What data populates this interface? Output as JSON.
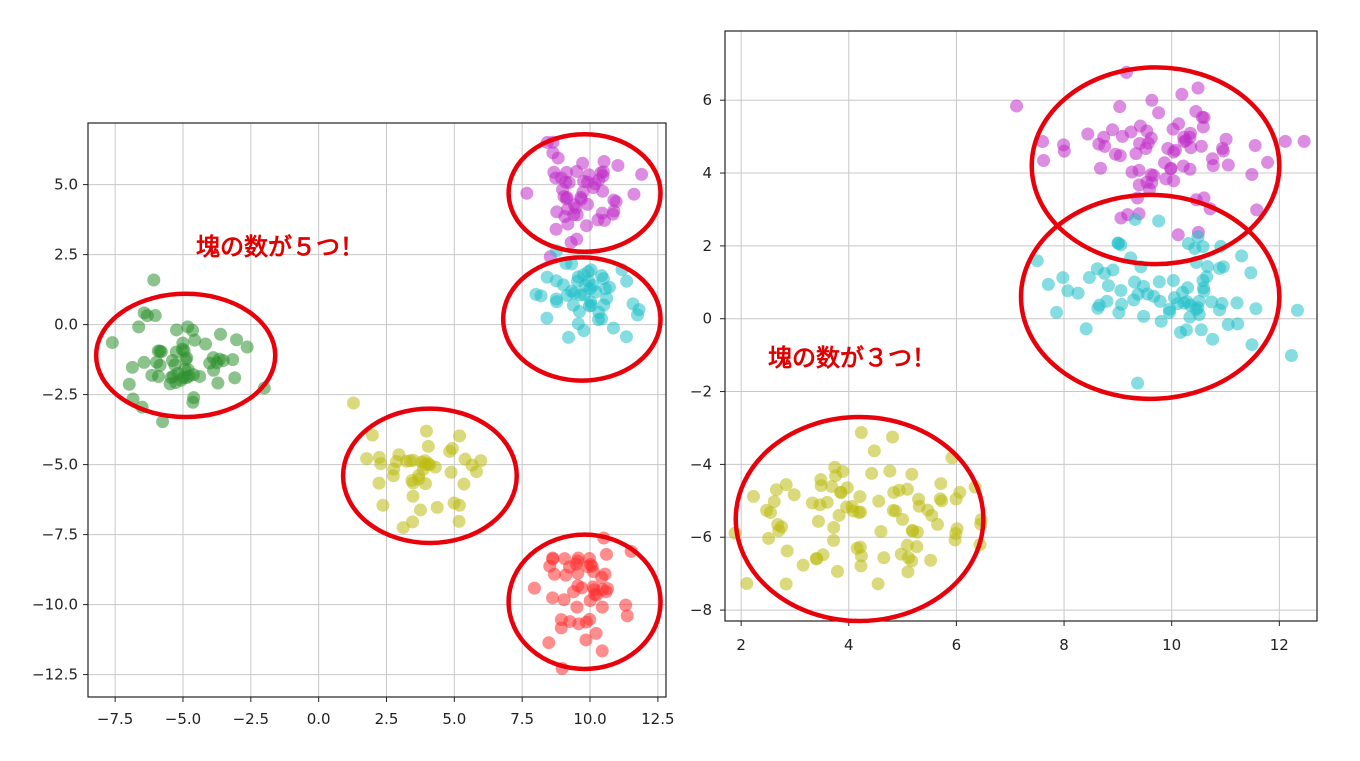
{
  "chart_data": [
    {
      "type": "scatter",
      "title": "",
      "xlabel": "",
      "ylabel": "",
      "xlim": [
        -8.5,
        12.8
      ],
      "ylim": [
        -13.3,
        7.2
      ],
      "grid": true,
      "x_ticks": [
        -7.5,
        -5.0,
        -2.5,
        0.0,
        2.5,
        5.0,
        7.5,
        10.0,
        12.5
      ],
      "x_tick_labels": [
        "−7.5",
        "−5.0",
        "−2.5",
        "0.0",
        "2.5",
        "5.0",
        "7.5",
        "10.0",
        "12.5"
      ],
      "y_ticks": [
        5.0,
        2.5,
        0.0,
        -2.5,
        -5.0,
        -7.5,
        -10.0,
        -12.5
      ],
      "y_tick_labels": [
        "5.0",
        "2.5",
        "0.0",
        "−2.5",
        "−5.0",
        "−7.5",
        "−10.0",
        "−12.5"
      ],
      "annotation": "塊の数が５つ！",
      "annotation_color": "#e00000",
      "clusters": [
        {
          "name": "cluster-magenta",
          "color": "#c030c8",
          "cx": 9.8,
          "cy": 4.7,
          "sx": 0.9,
          "sy": 0.8,
          "n": 55,
          "seed": 11
        },
        {
          "name": "cluster-cyan",
          "color": "#20c0c8",
          "cx": 9.6,
          "cy": 1.0,
          "sx": 1.0,
          "sy": 0.8,
          "n": 50,
          "seed": 23
        },
        {
          "name": "cluster-green",
          "color": "#2e8f2e",
          "cx": -4.9,
          "cy": -1.2,
          "sx": 1.0,
          "sy": 0.9,
          "n": 60,
          "seed": 37
        },
        {
          "name": "cluster-yellow",
          "color": "#bcbc10",
          "cx": 4.1,
          "cy": -5.3,
          "sx": 1.1,
          "sy": 0.9,
          "n": 45,
          "seed": 41
        },
        {
          "name": "cluster-red",
          "color": "#ff3030",
          "cx": 9.7,
          "cy": -9.7,
          "sx": 0.8,
          "sy": 0.9,
          "n": 50,
          "seed": 53
        }
      ],
      "circles": [
        {
          "cx": 9.8,
          "cy": 4.7,
          "rx": 2.8,
          "ry": 2.1
        },
        {
          "cx": 9.7,
          "cy": 0.2,
          "rx": 2.9,
          "ry": 2.2
        },
        {
          "cx": -4.9,
          "cy": -1.1,
          "rx": 3.3,
          "ry": 2.2
        },
        {
          "cx": 4.1,
          "cy": -5.4,
          "rx": 3.2,
          "ry": 2.4
        },
        {
          "cx": 9.8,
          "cy": -9.9,
          "rx": 2.8,
          "ry": 2.4
        }
      ]
    },
    {
      "type": "scatter",
      "title": "",
      "xlabel": "",
      "ylabel": "",
      "xlim": [
        1.7,
        12.7
      ],
      "ylim": [
        -8.3,
        7.9
      ],
      "grid": true,
      "x_ticks": [
        2,
        4,
        6,
        8,
        10,
        12
      ],
      "x_tick_labels": [
        "2",
        "4",
        "6",
        "8",
        "10",
        "12"
      ],
      "y_ticks": [
        6,
        4,
        2,
        0,
        -2,
        -4,
        -6,
        -8
      ],
      "y_tick_labels": [
        "6",
        "4",
        "2",
        "0",
        "−2",
        "−4",
        "−6",
        "−8"
      ],
      "annotation": "塊の数が３つ！",
      "annotation_color": "#e00000",
      "clusters": [
        {
          "name": "cluster-magenta",
          "color": "#c030c8",
          "cx": 9.8,
          "cy": 4.6,
          "sx": 1.0,
          "sy": 0.85,
          "n": 80,
          "seed": 67
        },
        {
          "name": "cluster-cyan",
          "color": "#20c0c8",
          "cx": 9.8,
          "cy": 0.8,
          "sx": 1.1,
          "sy": 0.85,
          "n": 80,
          "seed": 71
        },
        {
          "name": "cluster-yellow",
          "color": "#bcbc10",
          "cx": 4.2,
          "cy": -5.4,
          "sx": 1.1,
          "sy": 1.0,
          "n": 90,
          "seed": 83
        }
      ],
      "circles": [
        {
          "cx": 9.7,
          "cy": 4.2,
          "rx": 2.3,
          "ry": 2.7
        },
        {
          "cx": 9.6,
          "cy": 0.6,
          "rx": 2.4,
          "ry": 2.8
        },
        {
          "cx": 4.2,
          "cy": -5.5,
          "rx": 2.3,
          "ry": 2.8
        }
      ]
    }
  ]
}
